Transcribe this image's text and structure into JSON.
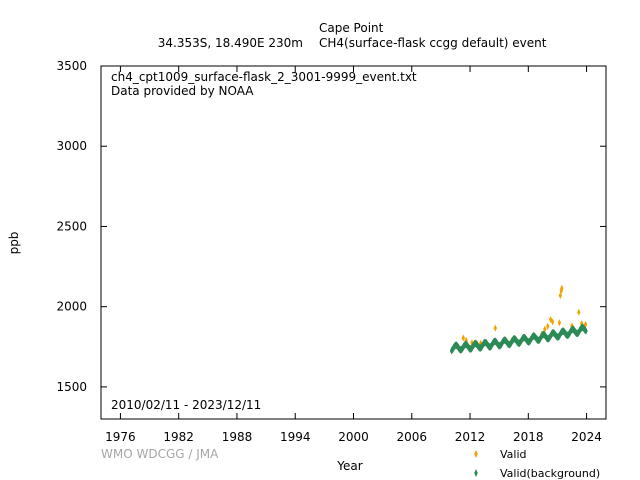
{
  "header": {
    "station": "Cape Point",
    "location": "34.353S, 18.490E 230m",
    "dataset": "CH4(surface-flask ccgg default) event"
  },
  "inset": {
    "filename": "ch4_cpt1009_surface-flask_2_3001-9999_event.txt",
    "provider": "Data provided by NOAA",
    "date_range": "2010/02/11 - 2023/12/11"
  },
  "credit": "WMO WDCGG / JMA",
  "colors": {
    "valid": "#f5a200",
    "background": "#2e8b57"
  },
  "chart_data": {
    "type": "scatter",
    "xlabel": "Year",
    "ylabel": "ppb",
    "xlim": [
      1974,
      2026
    ],
    "ylim": [
      1300,
      3500
    ],
    "xticks": [
      1976,
      1982,
      1988,
      1994,
      2000,
      2006,
      2012,
      2018,
      2024
    ],
    "yticks": [
      1500,
      2000,
      2500,
      3000,
      3500
    ],
    "legend_position": "bottom-right, outside plot",
    "series": [
      {
        "name": "Valid",
        "marker": "diamond",
        "color": "#f5a200",
        "points": [
          [
            2011.3,
            1805
          ],
          [
            2011.6,
            1790
          ],
          [
            2012.2,
            1775
          ],
          [
            2013.1,
            1772
          ],
          [
            2014.6,
            1866
          ],
          [
            2016.3,
            1790
          ],
          [
            2017.5,
            1805
          ],
          [
            2019.4,
            1830
          ],
          [
            2019.7,
            1860
          ],
          [
            2020.0,
            1878
          ],
          [
            2020.3,
            1920
          ],
          [
            2020.5,
            1905
          ],
          [
            2021.2,
            1900
          ],
          [
            2021.3,
            2070
          ],
          [
            2021.4,
            2100
          ],
          [
            2021.45,
            2115
          ],
          [
            2022.5,
            1880
          ],
          [
            2023.2,
            1965
          ],
          [
            2023.5,
            1895
          ],
          [
            2023.9,
            1890
          ]
        ]
      },
      {
        "name": "Valid(background)",
        "marker": "diamond",
        "color": "#2e8b57",
        "trend": {
          "start_year": 2010.1,
          "end_year": 2023.95,
          "base": 1742,
          "end_base": 1860,
          "seasonal_amplitude": 16
        }
      }
    ]
  }
}
